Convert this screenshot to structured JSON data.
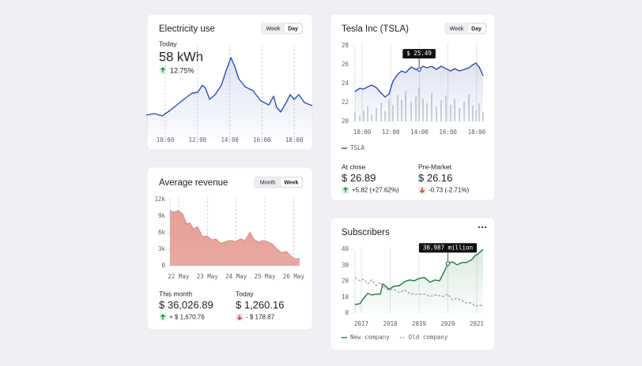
{
  "chart_data": [
    {
      "type": "line",
      "title": "Electricity use",
      "buttons": [
        {
          "label": "Week",
          "active": false
        },
        {
          "label": "Day",
          "active": true
        }
      ],
      "kpi": {
        "label": "Today",
        "value": "58 kWh",
        "change": "12.75%",
        "trend": "up"
      },
      "x": [
        8.82,
        9.31,
        9.8,
        10.29,
        10.78,
        11.27,
        11.67,
        12.01,
        12.3,
        12.5,
        12.75,
        13.09,
        13.48,
        13.77,
        14.07,
        14.31,
        14.56,
        14.95,
        15.44,
        15.93,
        16.42,
        16.72,
        16.91,
        17.16,
        17.5,
        17.75,
        17.99,
        18.28,
        18.63,
        19.12
      ],
      "series": [
        {
          "color": "#2d4fb8",
          "area": true,
          "values": [
            29,
            31,
            28,
            35,
            43,
            51,
            57,
            58,
            67,
            63,
            49,
            55,
            67,
            85,
            102,
            91,
            75,
            65,
            60,
            47,
            42,
            53,
            39,
            33,
            45,
            55,
            49,
            55,
            45,
            41
          ]
        }
      ],
      "xlim": [
        8.82,
        19.12
      ],
      "ylim": [
        0,
        115
      ],
      "xticks": [
        {
          "value": 10,
          "label": "10:00"
        },
        {
          "value": 12,
          "label": "12:00"
        },
        {
          "value": 14,
          "label": "14:00"
        },
        {
          "value": 16,
          "label": "16:00"
        },
        {
          "value": 18,
          "label": "18:00"
        }
      ],
      "grid": true,
      "grid_style": "dashed"
    },
    {
      "type": "area",
      "title": "Average revenue",
      "buttons": [
        {
          "label": "Month",
          "active": false
        },
        {
          "label": "Week",
          "active": true
        }
      ],
      "x": [
        21.7,
        21.83,
        22.0,
        22.14,
        22.28,
        22.39,
        22.52,
        22.66,
        22.83,
        22.99,
        23.16,
        23.29,
        23.46,
        23.63,
        23.79,
        23.98,
        24.15,
        24.31,
        24.48,
        24.62,
        24.78,
        24.95,
        25.09,
        25.28,
        25.42,
        25.58,
        25.75,
        25.88,
        26.02,
        26.21
      ],
      "series": [
        {
          "color": "#e49a92",
          "area": true,
          "values": [
            10000,
            9700,
            10000,
            9400,
            7600,
            7800,
            6700,
            7100,
            5300,
            5400,
            4700,
            4900,
            4100,
            4400,
            4600,
            4400,
            4900,
            4600,
            6100,
            4800,
            4300,
            4600,
            4400,
            3900,
            3000,
            2400,
            2600,
            1900,
            1300,
            1300
          ]
        }
      ],
      "xlim": [
        21.7,
        26.21
      ],
      "ylim": [
        0,
        12000
      ],
      "xticks": [
        {
          "value": 22,
          "label": "22 May"
        },
        {
          "value": 23,
          "label": "23 May"
        },
        {
          "value": 24,
          "label": "24 May"
        },
        {
          "value": 25,
          "label": "25 May"
        },
        {
          "value": 26,
          "label": "26 May"
        }
      ],
      "yticks": [
        0,
        {
          "value": 3000,
          "label": "3k"
        },
        {
          "value": 6000,
          "label": "6k"
        },
        {
          "value": 9000,
          "label": "9k"
        },
        {
          "value": 12000,
          "label": "12k"
        }
      ],
      "grid": true,
      "grid_style": "dashed",
      "stats": [
        {
          "label": "This month",
          "value": "$ 36,026.89",
          "change": "+ $ 1,670.76",
          "trend": "up"
        },
        {
          "label": "Today",
          "value": "$ 1,260.16",
          "change": "- $ 178.87",
          "trend": "down"
        }
      ]
    },
    {
      "type": "line",
      "title": "Tesla Inc (TSLA)",
      "buttons": [
        {
          "label": "Week",
          "active": false
        },
        {
          "label": "Day",
          "active": true
        }
      ],
      "x": [
        9.5,
        9.83,
        10.11,
        10.39,
        10.66,
        10.99,
        11.33,
        11.6,
        11.88,
        12.15,
        12.49,
        12.76,
        13.04,
        13.43,
        13.76,
        13.98,
        14.25,
        14.53,
        14.86,
        15.19,
        15.52,
        15.86,
        16.19,
        16.46,
        16.8,
        17.13,
        17.46,
        17.73,
        17.96,
        18.18,
        18.45
      ],
      "series": [
        {
          "name": "TSLA",
          "color": "#2d4aa8",
          "area": true,
          "values": [
            23.17,
            23.5,
            23.42,
            23.67,
            23.83,
            23.58,
            23.0,
            22.58,
            22.92,
            24.25,
            25.0,
            25.33,
            25.17,
            25.75,
            25.5,
            25.49,
            25.83,
            25.67,
            25.83,
            25.5,
            25.83,
            25.58,
            25.33,
            25.58,
            25.33,
            25.5,
            25.67,
            26.0,
            26.17,
            25.75,
            24.83
          ]
        }
      ],
      "volume": [
        12,
        8,
        15,
        20,
        10,
        18,
        25,
        14,
        30,
        22,
        35,
        28,
        40,
        26,
        33,
        45,
        30,
        24,
        38,
        20,
        28,
        34,
        22,
        30,
        18,
        26,
        36,
        21,
        15,
        24,
        12
      ],
      "volume_lim": [
        0,
        100
      ],
      "volume_color": "#cfd2da",
      "xlim": [
        9.5,
        18.45
      ],
      "ylim": [
        20,
        28
      ],
      "xticks": [
        {
          "value": 10,
          "label": "10:00"
        },
        {
          "value": 12,
          "label": "12:00"
        },
        {
          "value": 14,
          "label": "14:00"
        },
        {
          "value": 16,
          "label": "16:00"
        },
        {
          "value": 18,
          "label": "18:00"
        }
      ],
      "yticks": [
        20,
        22,
        24,
        26,
        28
      ],
      "grid": true,
      "grid_style": "solid",
      "annotation": {
        "x": 13.98,
        "value": 25.49,
        "label": "$ 25.49"
      },
      "stats": [
        {
          "label": "At close",
          "value": "$ 26.89",
          "change": "+5.82 (+27.62%)",
          "trend": "up"
        },
        {
          "label": "Pre-Market",
          "value": "$ 26.16",
          "change": "-0.73 (-2.71%)",
          "trend": "down"
        }
      ]
    },
    {
      "type": "line",
      "title": "Subscribers",
      "x": [
        2016.78,
        2016.95,
        2017.08,
        2017.22,
        2017.36,
        2017.52,
        2017.66,
        2017.74,
        2017.82,
        2017.96,
        2018.12,
        2018.32,
        2018.51,
        2018.67,
        2018.84,
        2019.0,
        2019.19,
        2019.38,
        2019.55,
        2019.71,
        2019.85,
        2020.0,
        2020.15,
        2020.32,
        2020.48,
        2020.64,
        2020.81,
        2020.95,
        2021.05,
        2021.22
      ],
      "series": [
        {
          "name": "New company",
          "color": "#1f7a3b",
          "area": true,
          "values": [
            5.4,
            5.9,
            9.4,
            12.4,
            11.4,
            11.9,
            11.9,
            18.3,
            17.3,
            14.9,
            16.8,
            17.3,
            19.8,
            20.8,
            20.3,
            21.8,
            22.3,
            19.3,
            20.8,
            20.3,
            25.2,
            30.987,
            32.2,
            30.2,
            31.7,
            31.7,
            33.2,
            36.1,
            37.1,
            40
          ]
        },
        {
          "name": "Old company",
          "color": "#a3a6ad",
          "dashed": true,
          "values": [
            22.3,
            20.3,
            21.3,
            18.3,
            20.8,
            17.3,
            19.3,
            17,
            15.3,
            14.5,
            14.9,
            12.9,
            14.4,
            12.4,
            11.9,
            11.9,
            11.9,
            10.4,
            11.4,
            10.9,
            10.4,
            11.9,
            8.4,
            9.4,
            7.9,
            6.4,
            6.4,
            4.5,
            4.8,
            5.0
          ]
        }
      ],
      "xlim": [
        2016.78,
        2021.22
      ],
      "ylim": [
        0,
        40
      ],
      "xticks": [
        2017,
        2018,
        2019,
        2020,
        2021
      ],
      "yticks": [
        0,
        10,
        20,
        30,
        40
      ],
      "grid": true,
      "grid_style": "solid",
      "annotation": {
        "x": 2020.0,
        "value": 30.987,
        "label": "30.987 million"
      }
    }
  ]
}
